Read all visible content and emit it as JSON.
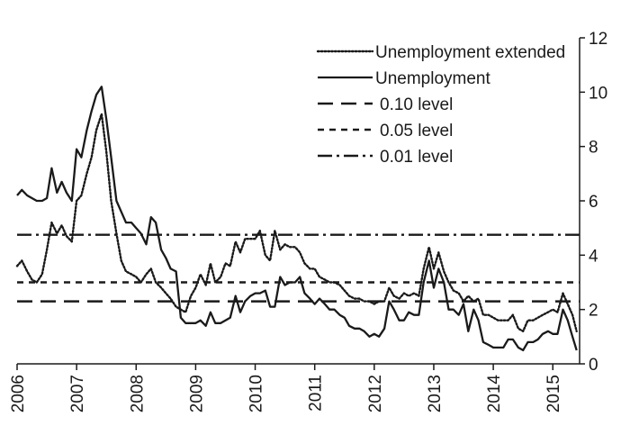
{
  "chart_data": {
    "type": "line",
    "title": "",
    "xlabel": "",
    "ylabel": "",
    "xlim": [
      2006.0,
      2015.45
    ],
    "ylim": [
      0,
      12
    ],
    "y_ticks": [
      0,
      2,
      4,
      6,
      8,
      10,
      12
    ],
    "x_ticks": [
      2006,
      2007,
      2008,
      2009,
      2010,
      2011,
      2012,
      2013,
      2014,
      2015
    ],
    "y_axis_position": "right",
    "grid": false,
    "legend_position": "top-right",
    "series": [
      {
        "name": "Unemployment extended",
        "style": "dotted",
        "color": "#1a1a1a",
        "points": [
          [
            2006.0,
            3.6
          ],
          [
            2006.08,
            3.8
          ],
          [
            2006.17,
            3.4
          ],
          [
            2006.25,
            3.1
          ],
          [
            2006.33,
            3.0
          ],
          [
            2006.42,
            3.3
          ],
          [
            2006.5,
            4.2
          ],
          [
            2006.58,
            5.2
          ],
          [
            2006.67,
            4.8
          ],
          [
            2006.75,
            5.1
          ],
          [
            2006.83,
            4.7
          ],
          [
            2006.92,
            4.5
          ],
          [
            2007.0,
            6.0
          ],
          [
            2007.08,
            6.2
          ],
          [
            2007.17,
            7.0
          ],
          [
            2007.25,
            7.6
          ],
          [
            2007.33,
            8.6
          ],
          [
            2007.42,
            9.2
          ],
          [
            2007.5,
            7.8
          ],
          [
            2007.58,
            6.0
          ],
          [
            2007.67,
            4.8
          ],
          [
            2007.75,
            3.8
          ],
          [
            2007.83,
            3.4
          ],
          [
            2007.92,
            3.3
          ],
          [
            2008.0,
            3.2
          ],
          [
            2008.08,
            3.0
          ],
          [
            2008.17,
            3.3
          ],
          [
            2008.25,
            3.5
          ],
          [
            2008.33,
            3.0
          ],
          [
            2008.42,
            2.8
          ],
          [
            2008.5,
            2.6
          ],
          [
            2008.58,
            2.4
          ],
          [
            2008.67,
            2.1
          ],
          [
            2008.75,
            2.0
          ],
          [
            2008.83,
            1.9
          ],
          [
            2008.92,
            2.5
          ],
          [
            2009.0,
            2.8
          ],
          [
            2009.08,
            3.3
          ],
          [
            2009.17,
            2.9
          ],
          [
            2009.25,
            3.7
          ],
          [
            2009.33,
            3.0
          ],
          [
            2009.42,
            3.2
          ],
          [
            2009.5,
            3.7
          ],
          [
            2009.58,
            3.6
          ],
          [
            2009.67,
            4.5
          ],
          [
            2009.75,
            4.1
          ],
          [
            2009.83,
            4.6
          ],
          [
            2009.92,
            4.6
          ],
          [
            2010.0,
            4.6
          ],
          [
            2010.08,
            4.9
          ],
          [
            2010.17,
            4.0
          ],
          [
            2010.25,
            3.8
          ],
          [
            2010.33,
            4.9
          ],
          [
            2010.42,
            4.2
          ],
          [
            2010.5,
            4.4
          ],
          [
            2010.58,
            4.3
          ],
          [
            2010.67,
            4.3
          ],
          [
            2010.75,
            4.1
          ],
          [
            2010.83,
            3.7
          ],
          [
            2010.92,
            3.5
          ],
          [
            2011.0,
            3.5
          ],
          [
            2011.08,
            3.2
          ],
          [
            2011.17,
            3.1
          ],
          [
            2011.25,
            3.0
          ],
          [
            2011.33,
            3.0
          ],
          [
            2011.42,
            2.9
          ],
          [
            2011.5,
            2.7
          ],
          [
            2011.58,
            2.5
          ],
          [
            2011.67,
            2.4
          ],
          [
            2011.75,
            2.4
          ],
          [
            2011.83,
            2.3
          ],
          [
            2011.92,
            2.3
          ],
          [
            2012.0,
            2.2
          ],
          [
            2012.08,
            2.3
          ],
          [
            2012.17,
            2.3
          ],
          [
            2012.25,
            2.8
          ],
          [
            2012.33,
            2.5
          ],
          [
            2012.42,
            2.4
          ],
          [
            2012.5,
            2.6
          ],
          [
            2012.58,
            2.5
          ],
          [
            2012.67,
            2.6
          ],
          [
            2012.75,
            2.5
          ],
          [
            2012.83,
            3.5
          ],
          [
            2012.92,
            4.3
          ],
          [
            2013.0,
            3.5
          ],
          [
            2013.08,
            4.1
          ],
          [
            2013.17,
            3.4
          ],
          [
            2013.25,
            3.0
          ],
          [
            2013.33,
            2.7
          ],
          [
            2013.42,
            2.6
          ],
          [
            2013.5,
            2.3
          ],
          [
            2013.58,
            2.5
          ],
          [
            2013.67,
            2.3
          ],
          [
            2013.75,
            2.4
          ],
          [
            2013.83,
            1.8
          ],
          [
            2013.92,
            1.8
          ],
          [
            2014.0,
            1.7
          ],
          [
            2014.08,
            1.6
          ],
          [
            2014.17,
            1.6
          ],
          [
            2014.25,
            1.6
          ],
          [
            2014.33,
            1.8
          ],
          [
            2014.42,
            1.3
          ],
          [
            2014.5,
            1.2
          ],
          [
            2014.58,
            1.6
          ],
          [
            2014.67,
            1.6
          ],
          [
            2014.75,
            1.7
          ],
          [
            2014.83,
            1.8
          ],
          [
            2014.92,
            1.9
          ],
          [
            2015.0,
            2.0
          ],
          [
            2015.08,
            1.9
          ],
          [
            2015.17,
            2.6
          ],
          [
            2015.25,
            2.2
          ],
          [
            2015.33,
            1.8
          ],
          [
            2015.4,
            1.2
          ]
        ]
      },
      {
        "name": "Unemployment",
        "style": "solid",
        "color": "#1a1a1a",
        "points": [
          [
            2006.0,
            6.2
          ],
          [
            2006.08,
            6.4
          ],
          [
            2006.17,
            6.2
          ],
          [
            2006.25,
            6.1
          ],
          [
            2006.33,
            6.0
          ],
          [
            2006.42,
            6.0
          ],
          [
            2006.5,
            6.1
          ],
          [
            2006.58,
            7.2
          ],
          [
            2006.67,
            6.3
          ],
          [
            2006.75,
            6.7
          ],
          [
            2006.83,
            6.3
          ],
          [
            2006.92,
            6.0
          ],
          [
            2007.0,
            7.9
          ],
          [
            2007.08,
            7.6
          ],
          [
            2007.17,
            8.6
          ],
          [
            2007.25,
            9.3
          ],
          [
            2007.33,
            9.9
          ],
          [
            2007.42,
            10.2
          ],
          [
            2007.5,
            9.0
          ],
          [
            2007.58,
            7.6
          ],
          [
            2007.67,
            6.0
          ],
          [
            2007.75,
            5.6
          ],
          [
            2007.83,
            5.2
          ],
          [
            2007.92,
            5.2
          ],
          [
            2008.0,
            5.0
          ],
          [
            2008.08,
            4.8
          ],
          [
            2008.17,
            4.4
          ],
          [
            2008.25,
            5.4
          ],
          [
            2008.33,
            5.2
          ],
          [
            2008.42,
            4.2
          ],
          [
            2008.5,
            3.9
          ],
          [
            2008.58,
            3.5
          ],
          [
            2008.67,
            3.4
          ],
          [
            2008.75,
            1.7
          ],
          [
            2008.83,
            1.5
          ],
          [
            2008.92,
            1.5
          ],
          [
            2009.0,
            1.5
          ],
          [
            2009.08,
            1.6
          ],
          [
            2009.17,
            1.4
          ],
          [
            2009.25,
            1.9
          ],
          [
            2009.33,
            1.5
          ],
          [
            2009.42,
            1.5
          ],
          [
            2009.5,
            1.6
          ],
          [
            2009.58,
            1.7
          ],
          [
            2009.67,
            2.5
          ],
          [
            2009.75,
            1.9
          ],
          [
            2009.83,
            2.3
          ],
          [
            2009.92,
            2.5
          ],
          [
            2010.0,
            2.6
          ],
          [
            2010.08,
            2.6
          ],
          [
            2010.17,
            2.7
          ],
          [
            2010.25,
            2.1
          ],
          [
            2010.33,
            2.1
          ],
          [
            2010.42,
            3.2
          ],
          [
            2010.5,
            2.9
          ],
          [
            2010.58,
            3.0
          ],
          [
            2010.67,
            3.0
          ],
          [
            2010.75,
            3.2
          ],
          [
            2010.83,
            2.6
          ],
          [
            2010.92,
            2.4
          ],
          [
            2011.0,
            2.2
          ],
          [
            2011.08,
            2.4
          ],
          [
            2011.17,
            2.2
          ],
          [
            2011.25,
            2.0
          ],
          [
            2011.33,
            2.0
          ],
          [
            2011.42,
            1.8
          ],
          [
            2011.5,
            1.7
          ],
          [
            2011.58,
            1.4
          ],
          [
            2011.67,
            1.3
          ],
          [
            2011.75,
            1.3
          ],
          [
            2011.83,
            1.2
          ],
          [
            2011.92,
            1.0
          ],
          [
            2012.0,
            1.1
          ],
          [
            2012.08,
            1.0
          ],
          [
            2012.17,
            1.3
          ],
          [
            2012.25,
            2.3
          ],
          [
            2012.33,
            2.0
          ],
          [
            2012.42,
            1.6
          ],
          [
            2012.5,
            1.6
          ],
          [
            2012.58,
            1.9
          ],
          [
            2012.67,
            1.8
          ],
          [
            2012.75,
            1.8
          ],
          [
            2012.83,
            3.0
          ],
          [
            2012.92,
            3.8
          ],
          [
            2013.0,
            2.8
          ],
          [
            2013.08,
            3.5
          ],
          [
            2013.17,
            3.0
          ],
          [
            2013.25,
            2.0
          ],
          [
            2013.33,
            2.0
          ],
          [
            2013.42,
            1.8
          ],
          [
            2013.5,
            2.2
          ],
          [
            2013.58,
            1.2
          ],
          [
            2013.67,
            2.0
          ],
          [
            2013.75,
            1.6
          ],
          [
            2013.83,
            0.8
          ],
          [
            2013.92,
            0.7
          ],
          [
            2014.0,
            0.6
          ],
          [
            2014.08,
            0.6
          ],
          [
            2014.17,
            0.6
          ],
          [
            2014.25,
            0.9
          ],
          [
            2014.33,
            0.9
          ],
          [
            2014.42,
            0.6
          ],
          [
            2014.5,
            0.5
          ],
          [
            2014.58,
            0.8
          ],
          [
            2014.67,
            0.8
          ],
          [
            2014.75,
            0.9
          ],
          [
            2014.83,
            1.1
          ],
          [
            2014.92,
            1.2
          ],
          [
            2015.0,
            1.1
          ],
          [
            2015.08,
            1.1
          ],
          [
            2015.17,
            2.0
          ],
          [
            2015.25,
            1.6
          ],
          [
            2015.33,
            1.0
          ],
          [
            2015.4,
            0.5
          ]
        ]
      },
      {
        "name": "0.10 level",
        "style": "long-dash",
        "color": "#1a1a1a",
        "constant": 2.3
      },
      {
        "name": "0.05 level",
        "style": "short-dash",
        "color": "#1a1a1a",
        "constant": 3.0
      },
      {
        "name": "0.01 level",
        "style": "dash-dot",
        "color": "#1a1a1a",
        "constant": 4.75
      }
    ]
  }
}
